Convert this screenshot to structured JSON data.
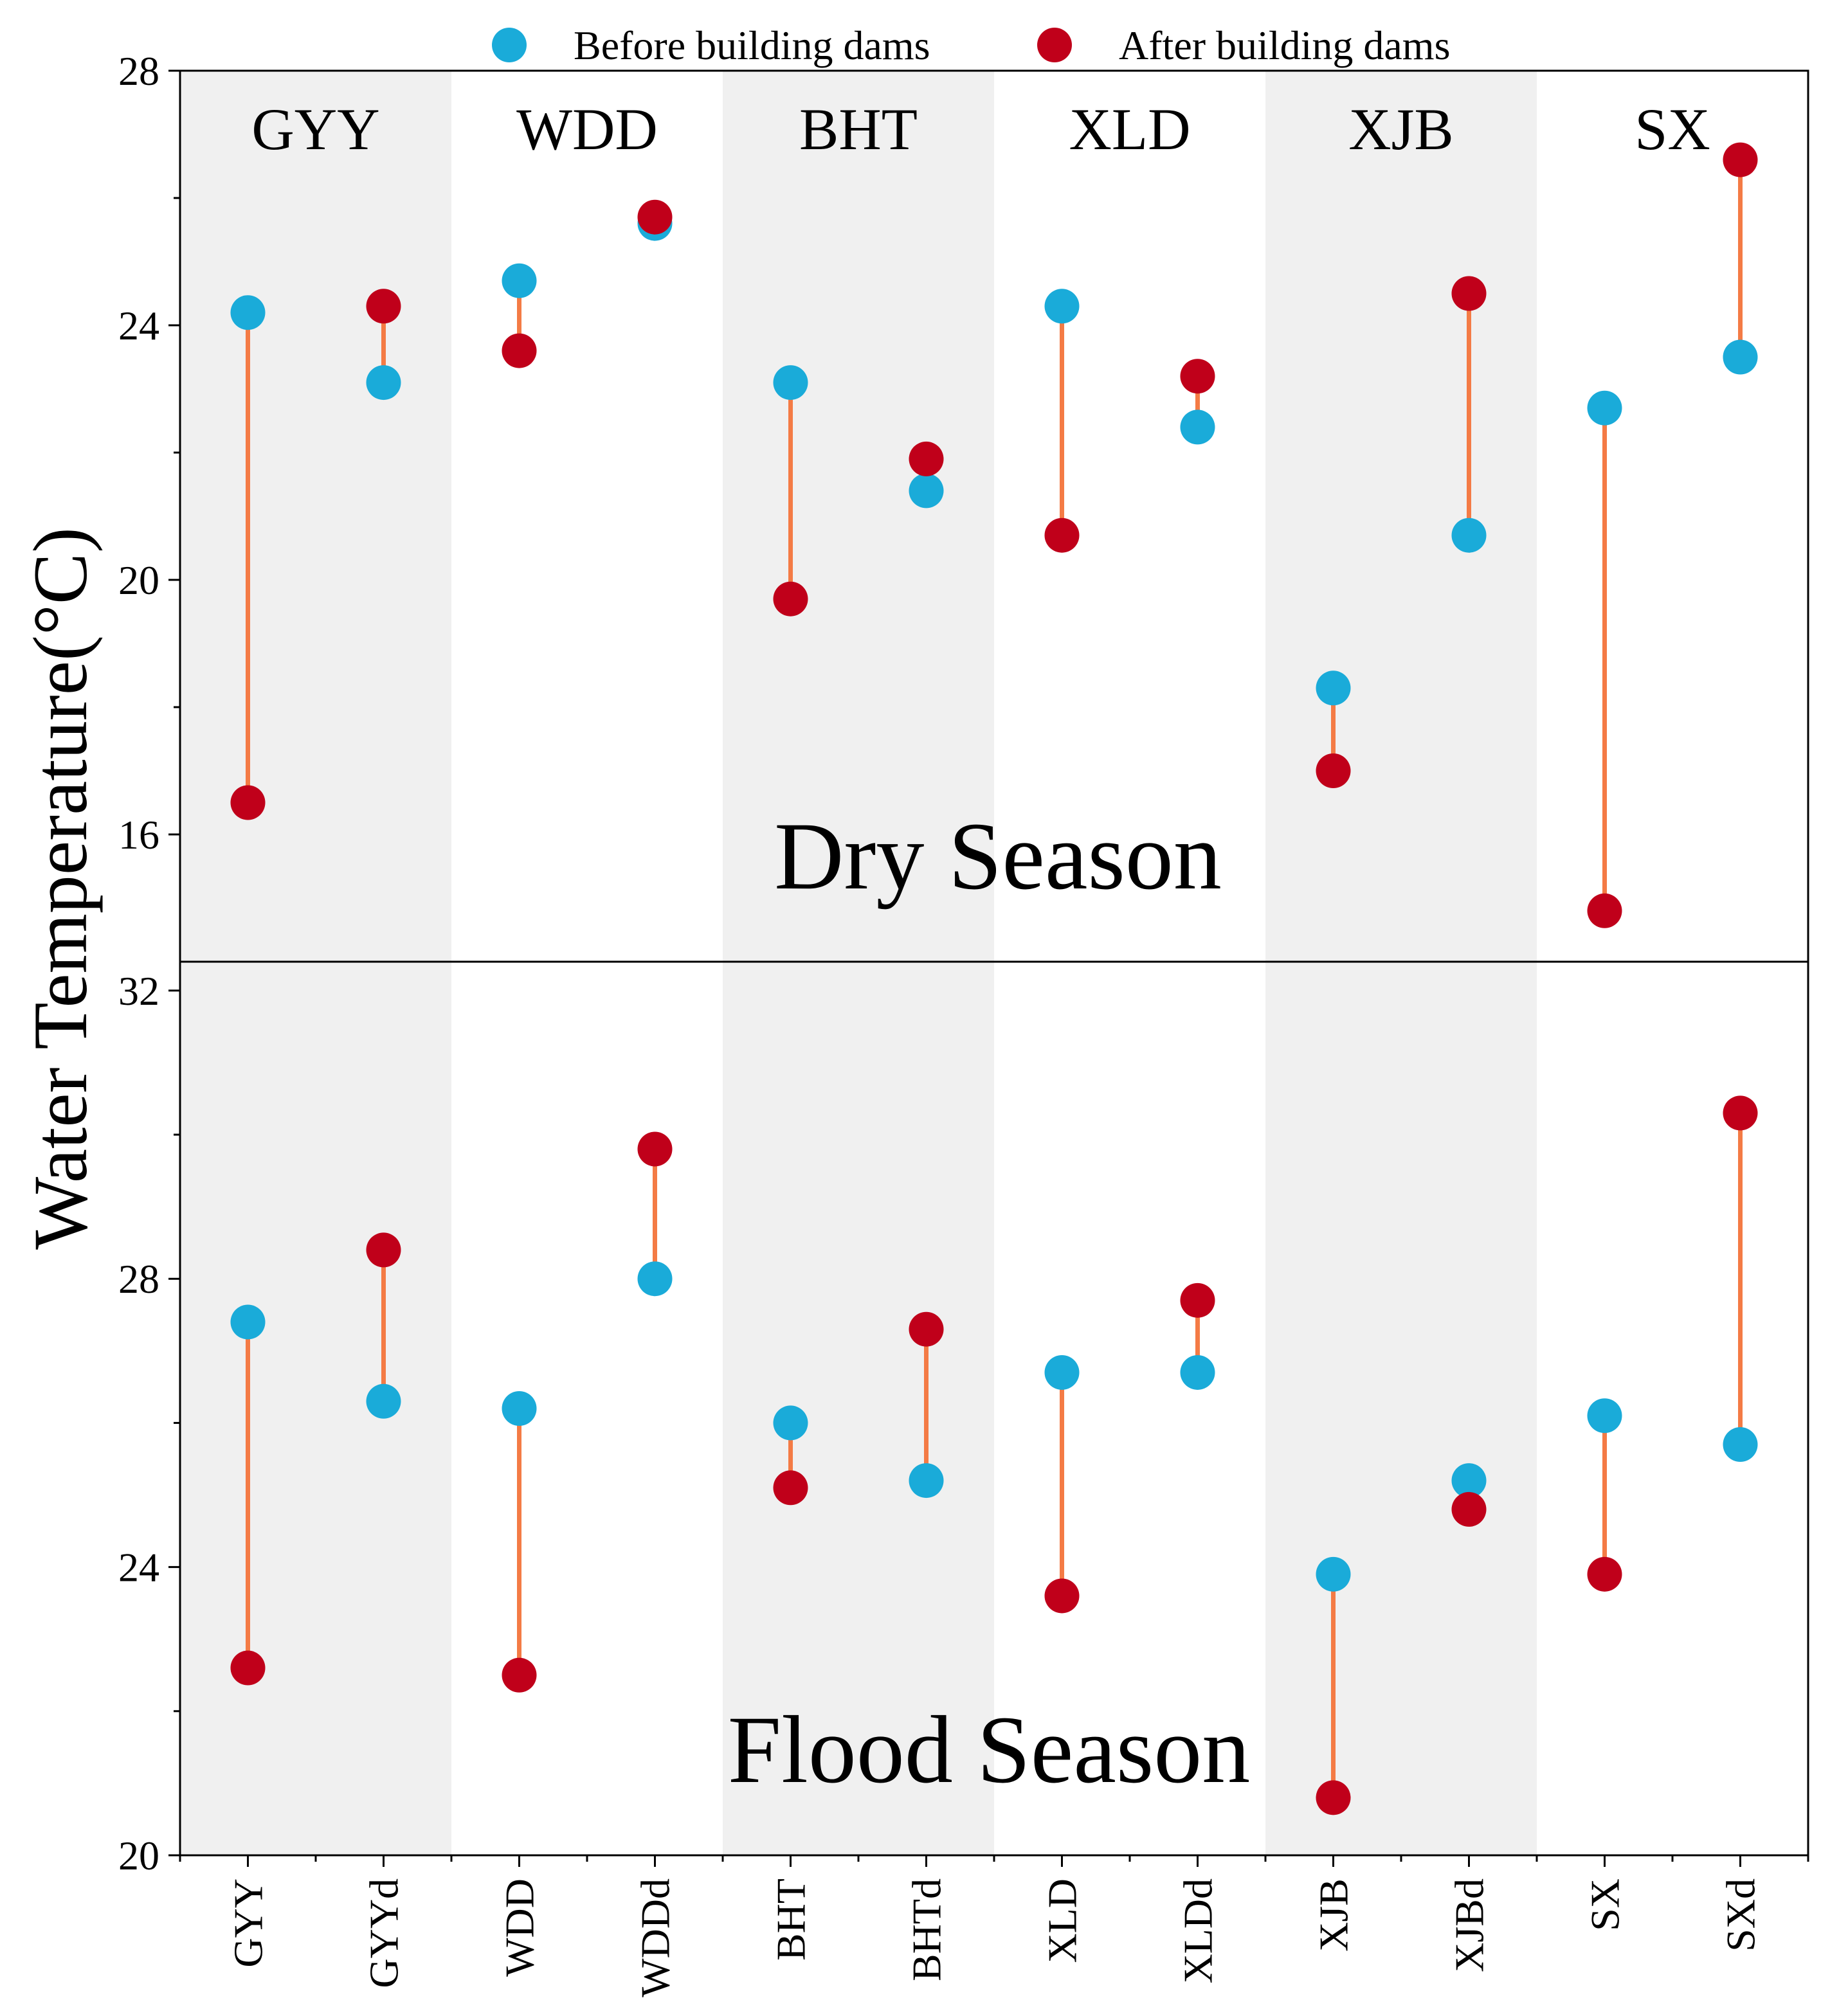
{
  "chart_data": {
    "type": "dumbbell",
    "ylabel": "Water Temperature(°C)",
    "legend": {
      "placement": "top-center",
      "entries": [
        {
          "key": "before",
          "label": "Before building dams",
          "color": "#1aabd9"
        },
        {
          "key": "after",
          "label": "After building dams",
          "color": "#c0001a"
        }
      ]
    },
    "connector_color": "#f47b45",
    "band_color": "#f0f0f0",
    "categories": [
      "GYY",
      "GYYd",
      "WDD",
      "WDDd",
      "BHT",
      "BHTd",
      "XLD",
      "XLDd",
      "XJB",
      "XJBd",
      "SX",
      "SXd"
    ],
    "groups": [
      "GYY",
      "WDD",
      "BHT",
      "XLD",
      "XJB",
      "SX"
    ],
    "panels": [
      {
        "title": "Dry Season",
        "ylim": [
          14,
          28
        ],
        "yticks": [
          "16",
          "20",
          "24",
          "28"
        ],
        "before": [
          24.2,
          23.1,
          24.7,
          25.6,
          23.1,
          21.4,
          24.3,
          22.4,
          18.3,
          20.7,
          22.7,
          23.5
        ],
        "after": [
          16.5,
          24.3,
          23.6,
          25.7,
          19.7,
          21.9,
          20.7,
          23.2,
          17.0,
          24.5,
          14.8,
          26.6
        ]
      },
      {
        "title": "Flood Season",
        "ylim": [
          20,
          32.4
        ],
        "yticks": [
          "20",
          "24",
          "28",
          "32"
        ],
        "before": [
          27.4,
          26.3,
          26.2,
          28.0,
          26.0,
          25.2,
          26.7,
          26.7,
          23.9,
          25.2,
          26.1,
          25.7
        ],
        "after": [
          22.6,
          28.4,
          22.5,
          29.8,
          25.1,
          27.3,
          23.6,
          27.7,
          20.8,
          24.8,
          23.9,
          30.3
        ]
      }
    ]
  }
}
